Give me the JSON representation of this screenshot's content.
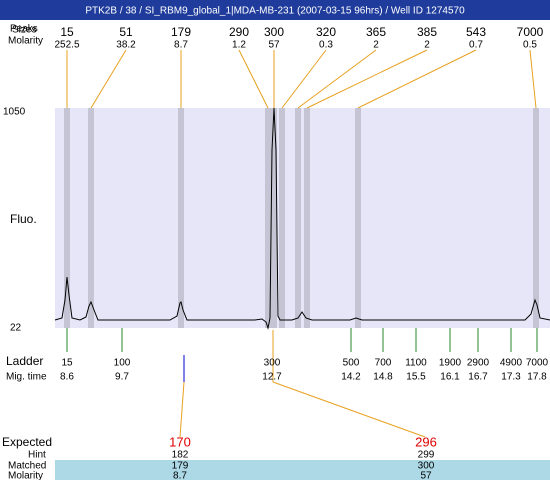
{
  "title": "PTK2B / 38 / SI_RBM9_global_1|MDA-MB-231 (2007-03-15 96hrs) / Well ID 1274570",
  "labels": {
    "peaks": "Peaks",
    "sizes": "Sizes",
    "molarity": "Molarity",
    "fluo": "Fluo.",
    "ymax": 1050,
    "ymin": 22,
    "ladder": "Ladder",
    "mig_time": "Mig. time",
    "expected": "Expected",
    "hint": "Hint",
    "matched": "Matched",
    "molarity_bottom": "Molarity"
  },
  "peaks": [
    {
      "size": 15,
      "molarity": 252.5
    },
    {
      "size": 51,
      "molarity": 38.2
    },
    {
      "size": 179,
      "molarity": 8.7
    },
    {
      "size": 290,
      "molarity": 1.2
    },
    {
      "size": 300,
      "molarity": 57
    },
    {
      "size": 320,
      "molarity": 0.3
    },
    {
      "size": 365,
      "molarity": 2
    },
    {
      "size": 385,
      "molarity": 2
    },
    {
      "size": 543,
      "molarity": 0.7
    },
    {
      "size": 7000,
      "molarity": 0.5
    }
  ],
  "ladder": [
    {
      "size": 15,
      "mig_time": 8.6
    },
    {
      "size": 100,
      "mig_time": 9.7
    },
    {
      "size": 300,
      "mig_time": 12.7
    },
    {
      "size": 500,
      "mig_time": 14.2
    },
    {
      "size": 700,
      "mig_time": 14.8
    },
    {
      "size": 1100,
      "mig_time": 15.5
    },
    {
      "size": 1900,
      "mig_time": 16.1
    },
    {
      "size": 2900,
      "mig_time": 16.7
    },
    {
      "size": 4900,
      "mig_time": 17.3
    },
    {
      "size": 7000,
      "mig_time": 17.8
    }
  ],
  "expected": [
    {
      "expected": 170,
      "hint": 182,
      "matched": 179,
      "molarity": 8.7
    },
    {
      "expected": 296,
      "hint": 299,
      "matched": 300,
      "molarity": 57
    }
  ]
}
